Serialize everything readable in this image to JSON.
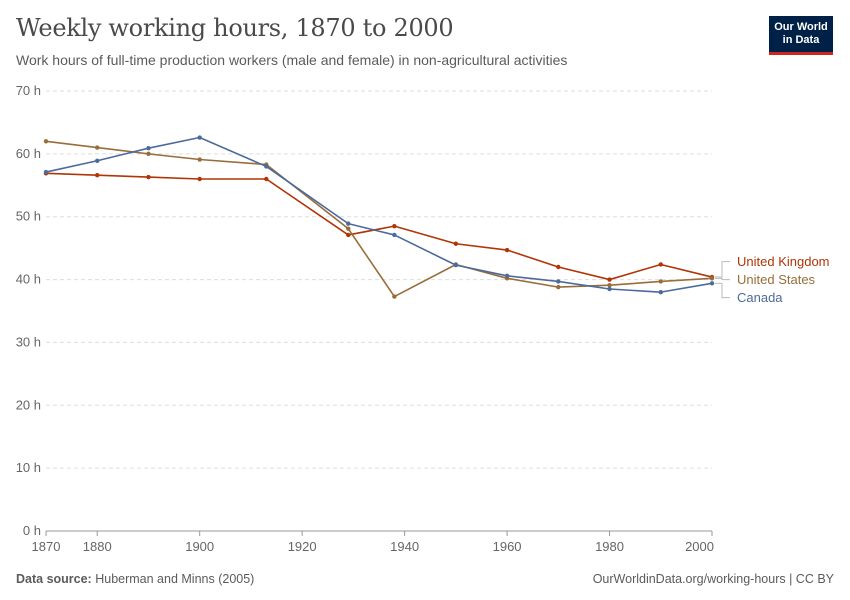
{
  "header": {
    "title": "Weekly working hours, 1870 to 2000",
    "subtitle": "Work hours of full-time production workers (male and female) in non-agricultural activities"
  },
  "logo": {
    "line1": "Our World",
    "line2": "in Data"
  },
  "footer": {
    "source_label": "Data source:",
    "source_text": "Huberman and Minns (2005)",
    "url_text": "OurWorldinData.org/working-hours | CC BY"
  },
  "colors": {
    "uk": "#b13507",
    "us": "#996d39",
    "canada": "#4c6a9c",
    "grid": "#dddddd",
    "axis_text": "#666666"
  },
  "chart_data": {
    "type": "line",
    "title": "Weekly working hours, 1870 to 2000",
    "xlabel": "",
    "ylabel": "",
    "xlim": [
      1870,
      2000
    ],
    "ylim": [
      0,
      70
    ],
    "x_ticks": [
      1870,
      1880,
      1900,
      1920,
      1940,
      1960,
      1980,
      2000
    ],
    "y_ticks": [
      0,
      10,
      20,
      30,
      40,
      50,
      60,
      70
    ],
    "y_tick_labels": [
      "0 h",
      "10 h",
      "20 h",
      "30 h",
      "40 h",
      "50 h",
      "60 h",
      "70 h"
    ],
    "grid": "horizontal dashed",
    "legend": "right, labels at line ends",
    "series": [
      {
        "name": "United Kingdom",
        "color_key": "uk",
        "x": [
          1870,
          1880,
          1890,
          1900,
          1913,
          1929,
          1938,
          1950,
          1960,
          1970,
          1980,
          1990,
          2000
        ],
        "values": [
          56.9,
          56.6,
          56.3,
          56.0,
          56.0,
          47.1,
          48.5,
          45.7,
          44.7,
          42.0,
          40.0,
          42.4,
          40.4
        ]
      },
      {
        "name": "United States",
        "color_key": "us",
        "x": [
          1870,
          1880,
          1890,
          1900,
          1913,
          1929,
          1938,
          1950,
          1960,
          1970,
          1980,
          1990,
          2000
        ],
        "values": [
          62.0,
          61.0,
          60.0,
          59.1,
          58.3,
          48.1,
          37.3,
          42.4,
          40.2,
          38.8,
          39.1,
          39.7,
          40.2
        ]
      },
      {
        "name": "Canada",
        "color_key": "canada",
        "x": [
          1870,
          1880,
          1890,
          1900,
          1913,
          1929,
          1938,
          1950,
          1960,
          1970,
          1980,
          1990,
          2000
        ],
        "values": [
          57.1,
          58.9,
          60.9,
          62.6,
          58.0,
          48.9,
          47.1,
          42.3,
          40.6,
          39.7,
          38.5,
          38.0,
          39.4
        ]
      }
    ]
  }
}
